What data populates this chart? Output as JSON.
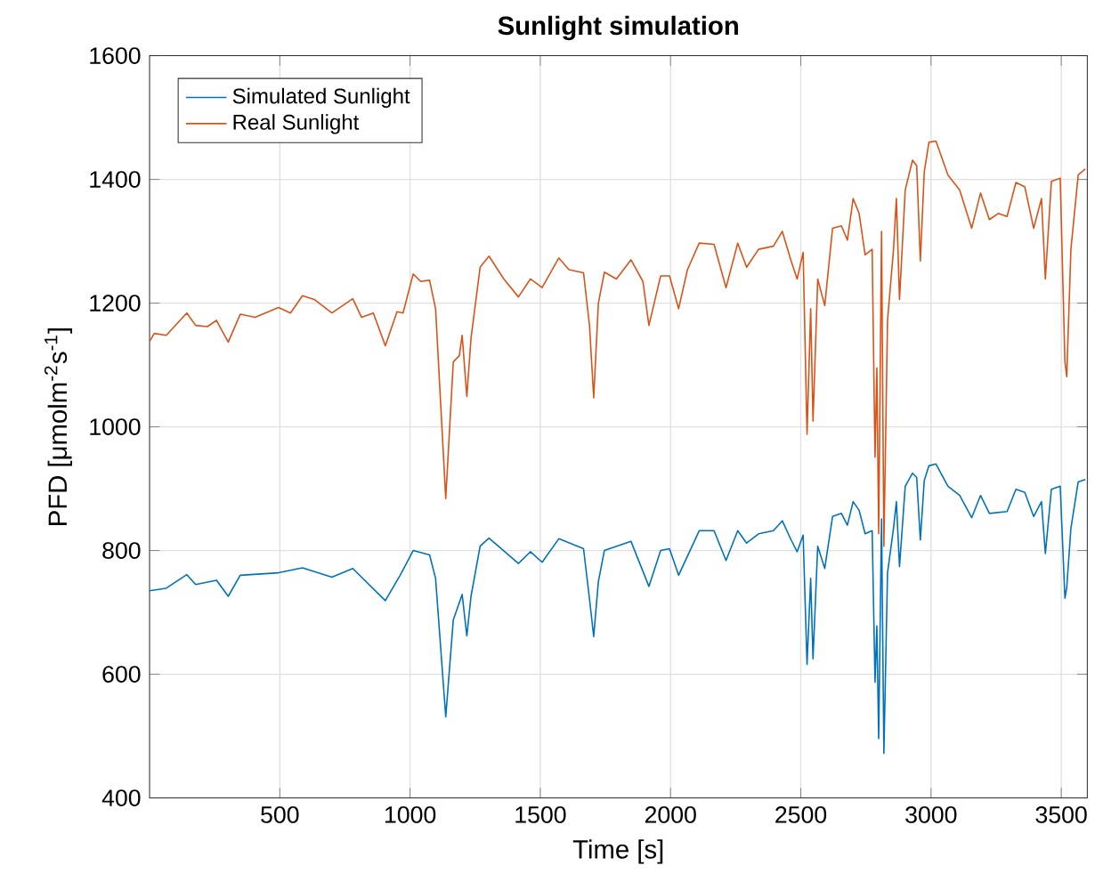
{
  "chart_data": {
    "type": "line",
    "title": "Sunlight simulation",
    "xlabel": "Time [s]",
    "ylabel": "PFD [μmolm$^{-2}$s$^{-1}$]",
    "xlim": [
      0,
      3600
    ],
    "ylim": [
      400,
      1600
    ],
    "xticks": [
      500,
      1000,
      1500,
      2000,
      2500,
      3000,
      3500
    ],
    "yticks": [
      400,
      600,
      800,
      1000,
      1200,
      1400,
      1600
    ],
    "grid": true,
    "legend": "top left",
    "line_style": "solid",
    "marker": "none",
    "series": [
      {
        "name": "Simulated Sunlight",
        "color": "#0072bd",
        "x": [
          0,
          64,
          143,
          177,
          257,
          302,
          348,
          495,
          587,
          700,
          780,
          905,
          962,
          1012,
          1075,
          1098,
          1137,
          1166,
          1200,
          1218,
          1234,
          1269,
          1303,
          1416,
          1462,
          1507,
          1571,
          1666,
          1689,
          1705,
          1723,
          1746,
          1848,
          1917,
          1962,
          1996,
          2031,
          2110,
          2167,
          2213,
          2258,
          2292,
          2338,
          2395,
          2429,
          2463,
          2486,
          2509,
          2524,
          2538,
          2547,
          2565,
          2592,
          2622,
          2656,
          2679,
          2701,
          2724,
          2747,
          2774,
          2785,
          2792,
          2799,
          2810,
          2819,
          2833,
          2856,
          2867,
          2879,
          2901,
          2929,
          2945,
          2959,
          2974,
          2992,
          3019,
          3065,
          3110,
          3156,
          3190,
          3224,
          3292,
          3326,
          3360,
          3394,
          3424,
          3439,
          3462,
          3496,
          3514,
          3521,
          3537,
          3565,
          3592
        ],
        "values": [
          735,
          739,
          761,
          745,
          752,
          726,
          760,
          764,
          772,
          757,
          771,
          719,
          760,
          800,
          793,
          755,
          531,
          688,
          729,
          662,
          726,
          807,
          820,
          779,
          798,
          781,
          819,
          803,
          721,
          661,
          750,
          800,
          815,
          742,
          800,
          803,
          760,
          832,
          832,
          784,
          832,
          812,
          827,
          832,
          848,
          817,
          798,
          825,
          616,
          755,
          625,
          807,
          771,
          855,
          860,
          841,
          879,
          865,
          827,
          832,
          587,
          678,
          496,
          851,
          472,
          764,
          836,
          879,
          774,
          904,
          925,
          918,
          817,
          913,
          937,
          940,
          904,
          889,
          853,
          889,
          860,
          863,
          899,
          894,
          855,
          879,
          795,
          899,
          904,
          723,
          740,
          836,
          911,
          915
        ]
      },
      {
        "name": "Real Sunlight",
        "color": "#d95319",
        "x": [
          0,
          18,
          64,
          143,
          177,
          222,
          257,
          302,
          348,
          405,
          495,
          541,
          587,
          632,
          700,
          780,
          814,
          859,
          905,
          950,
          973,
          1012,
          1041,
          1075,
          1098,
          1137,
          1166,
          1189,
          1200,
          1218,
          1234,
          1269,
          1303,
          1360,
          1416,
          1462,
          1507,
          1571,
          1610,
          1666,
          1689,
          1705,
          1723,
          1746,
          1792,
          1848,
          1894,
          1917,
          1962,
          1996,
          2031,
          2065,
          2110,
          2167,
          2213,
          2258,
          2292,
          2338,
          2395,
          2429,
          2463,
          2486,
          2509,
          2524,
          2538,
          2547,
          2565,
          2592,
          2622,
          2656,
          2679,
          2701,
          2724,
          2747,
          2774,
          2785,
          2792,
          2799,
          2810,
          2819,
          2833,
          2856,
          2867,
          2879,
          2901,
          2929,
          2945,
          2959,
          2974,
          2992,
          3019,
          3065,
          3110,
          3156,
          3190,
          3224,
          3258,
          3292,
          3326,
          3360,
          3394,
          3424,
          3439,
          3462,
          3496,
          3514,
          3521,
          3537,
          3565,
          3592
        ],
        "values": [
          1138,
          1151,
          1148,
          1184,
          1164,
          1162,
          1172,
          1137,
          1182,
          1177,
          1193,
          1184,
          1212,
          1206,
          1184,
          1207,
          1177,
          1184,
          1131,
          1186,
          1184,
          1247,
          1235,
          1237,
          1191,
          884,
          1105,
          1115,
          1148,
          1049,
          1143,
          1258,
          1276,
          1239,
          1210,
          1239,
          1225,
          1273,
          1254,
          1249,
          1163,
          1047,
          1200,
          1250,
          1239,
          1270,
          1235,
          1164,
          1244,
          1244,
          1191,
          1254,
          1297,
          1295,
          1225,
          1297,
          1258,
          1287,
          1292,
          1316,
          1268,
          1239,
          1282,
          988,
          1191,
          1009,
          1239,
          1196,
          1321,
          1325,
          1302,
          1369,
          1345,
          1278,
          1287,
          951,
          1095,
          827,
          1316,
          807,
          1172,
          1287,
          1369,
          1206,
          1383,
          1431,
          1422,
          1268,
          1412,
          1460,
          1462,
          1407,
          1383,
          1321,
          1378,
          1335,
          1345,
          1340,
          1395,
          1388,
          1321,
          1369,
          1239,
          1397,
          1402,
          1105,
          1081,
          1287,
          1407,
          1417
        ]
      }
    ]
  }
}
